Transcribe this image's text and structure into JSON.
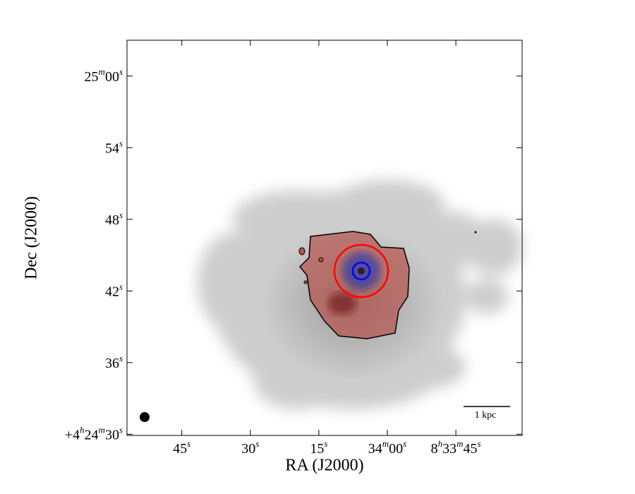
{
  "chart_data": {
    "type": "image",
    "x_label": "RA (J2000)",
    "y_label": "Dec (J2000)",
    "xlim": [
      117,
      30.5
    ],
    "ylim": [
      29.9,
      63
    ],
    "xticks": [
      {
        "value": 105,
        "label": "45s"
      },
      {
        "value": 90,
        "label": "30s"
      },
      {
        "value": 75,
        "label": "15s"
      },
      {
        "value": 60,
        "label": "34m00s"
      },
      {
        "value": 45,
        "label": "8h33m45s"
      }
    ],
    "yticks": [
      {
        "value": 30,
        "label": "+4h24m30s"
      },
      {
        "value": 36,
        "label": "36s"
      },
      {
        "value": 42,
        "label": "42s"
      },
      {
        "value": 48,
        "label": "48s"
      },
      {
        "value": 54,
        "label": "54s"
      },
      {
        "value": 60,
        "label": "25m00s"
      }
    ],
    "scale_bar_label": "1 kpc"
  }
}
